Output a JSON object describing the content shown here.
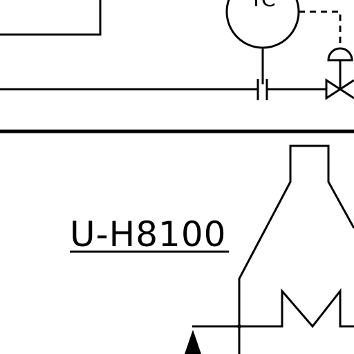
{
  "instrument": {
    "tag_letters": "TC"
  },
  "equipment": {
    "unit_label": "U-H8100"
  }
}
